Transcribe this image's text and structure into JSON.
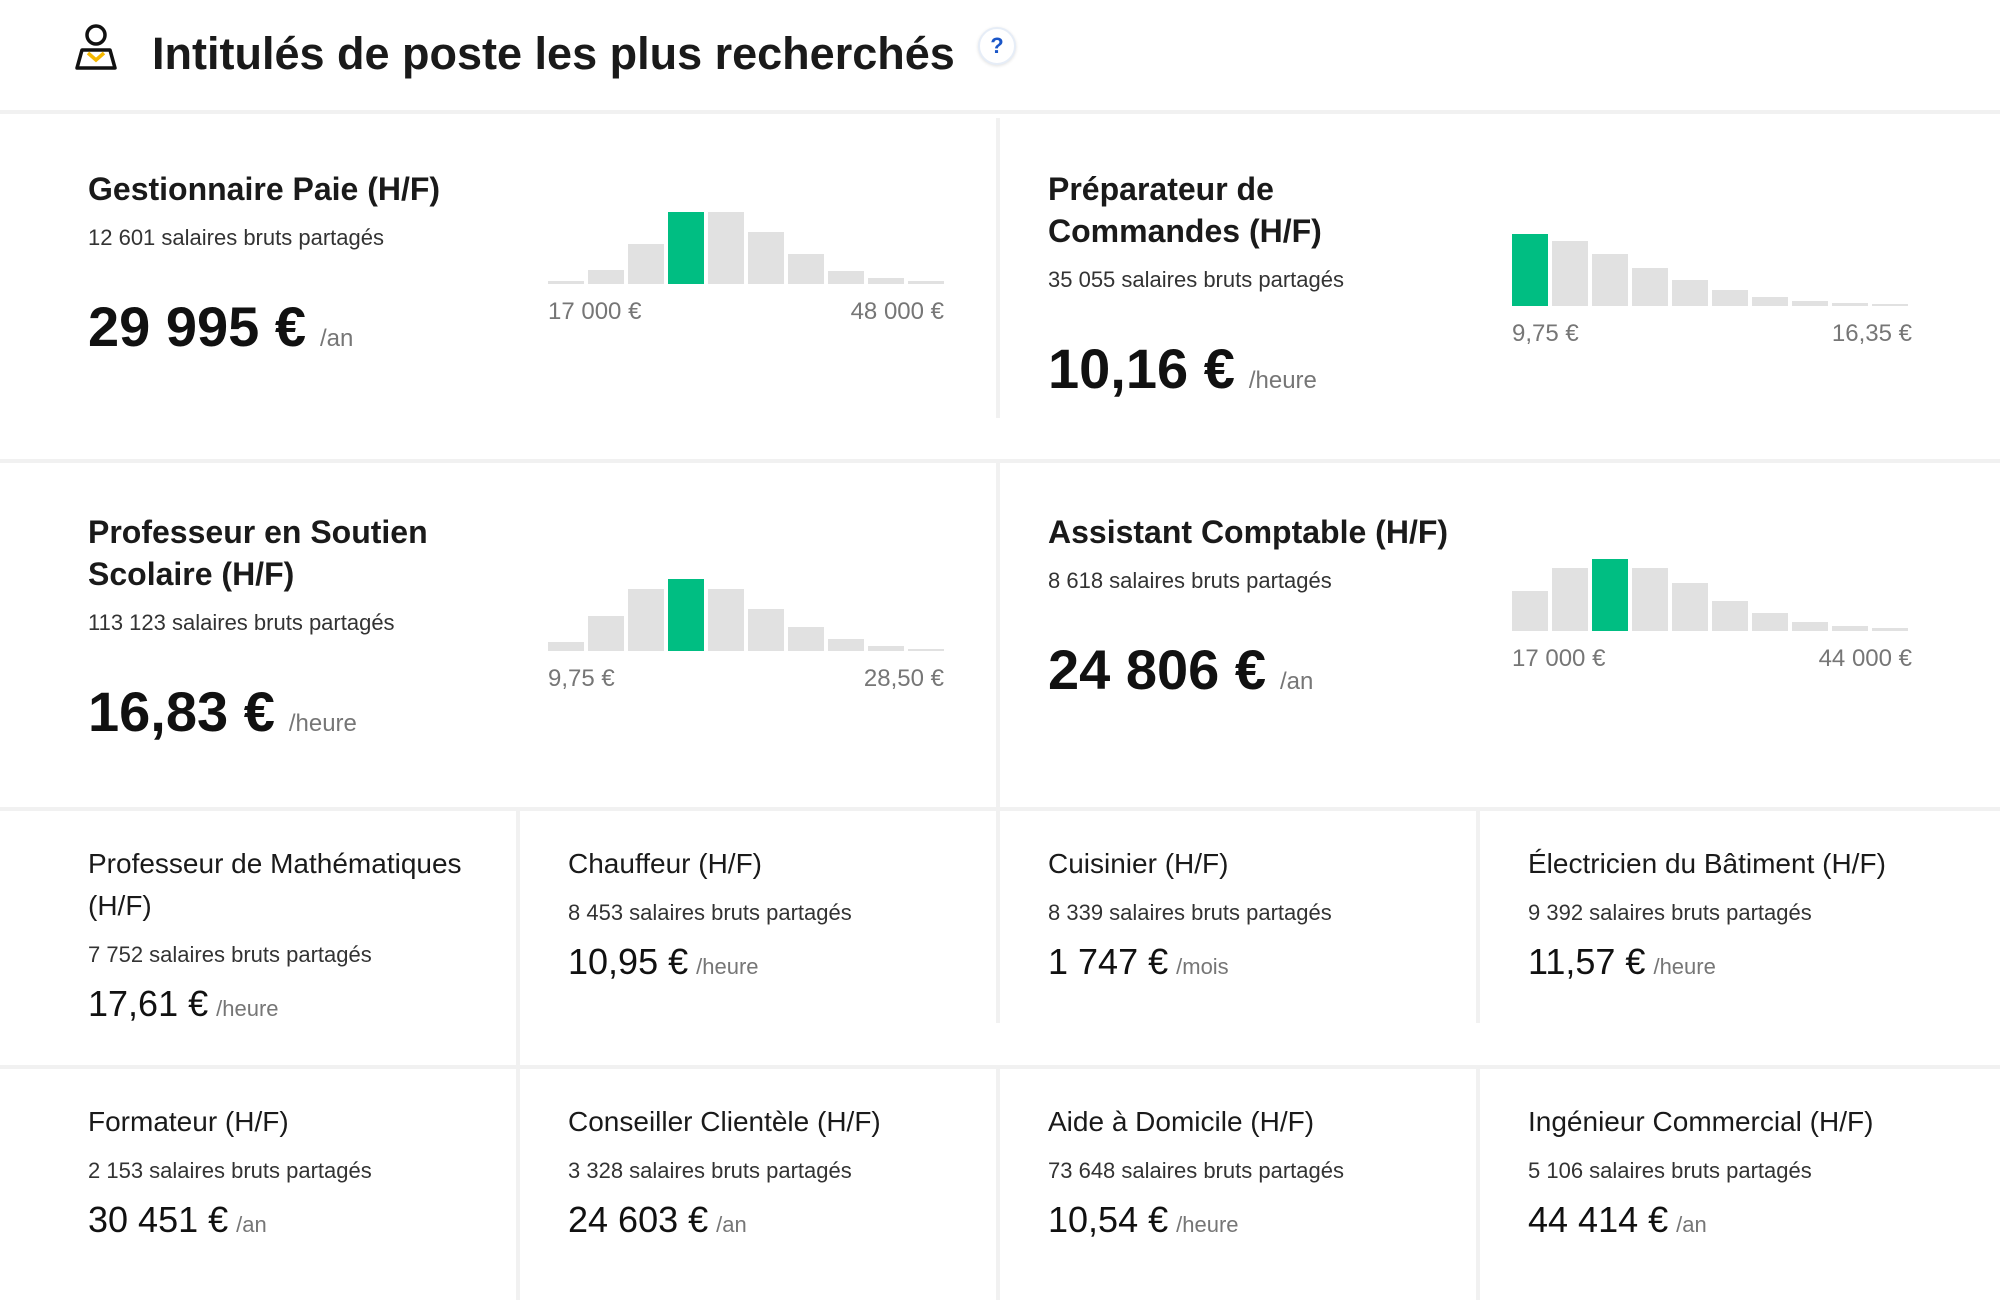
{
  "header": {
    "title": "Intitulés de poste les plus recherchés",
    "icon": "user-badge-icon",
    "help_label": "?"
  },
  "colors": {
    "highlight_bar": "#00be82",
    "bar": "#e1e1e1",
    "help_accent": "#1a56c8"
  },
  "featured": [
    {
      "title": "Gestionnaire Paie (H/F)",
      "count": "12 601 salaires bruts partagés",
      "salary": "29 995 €",
      "unit": "/an",
      "range_min": "17 000 €",
      "range_max": "48 000 €",
      "histogram": [
        4,
        20,
        55,
        100,
        100,
        72,
        42,
        18,
        8,
        4
      ],
      "highlight_index": 3
    },
    {
      "title": "Préparateur de Commandes (H/F)",
      "count": "35 055 salaires bruts partagés",
      "salary": "10,16 €",
      "unit": "/heure",
      "range_min": "9,75 €",
      "range_max": "16,35 €",
      "histogram": [
        100,
        90,
        72,
        53,
        36,
        22,
        13,
        7,
        4,
        2
      ],
      "highlight_index": 0
    },
    {
      "title": "Professeur en Soutien Scolaire (H/F)",
      "count": "113 123 salaires bruts partagés",
      "salary": "16,83 €",
      "unit": "/heure",
      "range_min": "9,75 €",
      "range_max": "28,50 €",
      "histogram": [
        13,
        48,
        86,
        100,
        86,
        58,
        33,
        16,
        7,
        2
      ],
      "highlight_index": 3
    },
    {
      "title": "Assistant Comptable (H/F)",
      "count": "8 618 salaires bruts partagés",
      "salary": "24 806 €",
      "unit": "/an",
      "range_min": "17 000 €",
      "range_max": "44 000 €",
      "histogram": [
        55,
        88,
        100,
        88,
        66,
        42,
        25,
        13,
        7,
        4
      ],
      "highlight_index": 2
    }
  ],
  "jobs": [
    {
      "title": "Professeur de Mathématiques (H/F)",
      "count": "7 752 salaires bruts partagés",
      "salary": "17,61 €",
      "unit": "/heure"
    },
    {
      "title": "Chauffeur (H/F)",
      "count": "8 453 salaires bruts partagés",
      "salary": "10,95 €",
      "unit": "/heure"
    },
    {
      "title": "Cuisinier (H/F)",
      "count": "8 339 salaires bruts partagés",
      "salary": "1 747 €",
      "unit": "/mois"
    },
    {
      "title": "Électricien du Bâtiment (H/F)",
      "count": "9 392 salaires bruts partagés",
      "salary": "11,57 €",
      "unit": "/heure"
    },
    {
      "title": "Formateur (H/F)",
      "count": "2 153 salaires bruts partagés",
      "salary": "30 451 €",
      "unit": "/an"
    },
    {
      "title": "Conseiller Clientèle (H/F)",
      "count": "3 328 salaires bruts partagés",
      "salary": "24 603 €",
      "unit": "/an"
    },
    {
      "title": "Aide à Domicile (H/F)",
      "count": "73 648 salaires bruts partagés",
      "salary": "10,54 €",
      "unit": "/heure"
    },
    {
      "title": "Ingénieur Commercial (H/F)",
      "count": "5 106 salaires bruts partagés",
      "salary": "44 414 €",
      "unit": "/an"
    }
  ]
}
